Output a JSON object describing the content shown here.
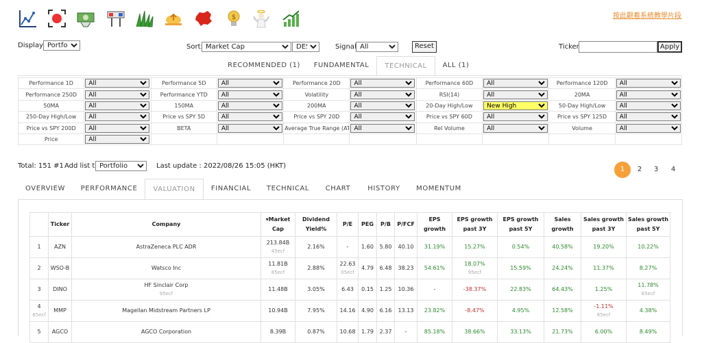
{
  "header": {
    "help_link": "按此觀看系統教學片段",
    "icons": [
      "line-chart-icon",
      "record-icon",
      "money-icon",
      "signboard-icon",
      "grass-icon",
      "rising-sun-icon",
      "china-map-icon",
      "lightbulb-money-icon",
      "angel-icon",
      "growth-chart-icon"
    ]
  },
  "controls": {
    "display_label": "Display:",
    "display_value": "Portfolio",
    "sort_label": "Sort:",
    "sort_value": "Market Cap",
    "order_value": "DESC",
    "signal_label": "Signal:",
    "signal_value": "All",
    "reset_label": "Reset",
    "ticker_label": "Ticker:",
    "ticker_value": "",
    "apply_label": "Apply"
  },
  "screener_tabs": [
    "RECOMMENDED (1)",
    "FUNDAMENTAL",
    "TECHNICAL",
    "ALL (1)"
  ],
  "filters": [
    {
      "label": "Performance 1D",
      "value": "All"
    },
    {
      "label": "Performance 5D",
      "value": "All"
    },
    {
      "label": "Performance 20D",
      "value": "All"
    },
    {
      "label": "Performance 60D",
      "value": "All"
    },
    {
      "label": "Performance 120D",
      "value": "All"
    },
    {
      "label": "Performance 250D",
      "value": "All"
    },
    {
      "label": "Performance YTD",
      "value": "All"
    },
    {
      "label": "Volatility",
      "value": "All"
    },
    {
      "label": "RSI(14)",
      "value": "All"
    },
    {
      "label": "20MA",
      "value": "All"
    },
    {
      "label": "50MA",
      "value": "All"
    },
    {
      "label": "150MA",
      "value": "All"
    },
    {
      "label": "200MA",
      "value": "All"
    },
    {
      "label": "20-Day High/Low",
      "value": "New High",
      "highlight": true
    },
    {
      "label": "50-Day High/Low",
      "value": "All"
    },
    {
      "label": "250-Day High/Low",
      "value": "All"
    },
    {
      "label": "Price vs SPY 5D",
      "value": "All"
    },
    {
      "label": "Price vs SPY 20D",
      "value": "All"
    },
    {
      "label": "Price vs SPY 60D",
      "value": "All"
    },
    {
      "label": "Price vs SPY 125D",
      "value": "All"
    },
    {
      "label": "Price vs SPY 200D",
      "value": "All"
    },
    {
      "label": "BETA",
      "value": "All"
    },
    {
      "label": "Average True Range (ATR)",
      "value": "All"
    },
    {
      "label": "Rel Volume",
      "value": "All"
    },
    {
      "label": "Volume",
      "value": "All"
    },
    {
      "label": "Price",
      "value": "All"
    }
  ],
  "summary": {
    "total": "Total: 151 #1",
    "add_list_label": "Add list to",
    "add_list_value": "Portfolio",
    "last_update": "Last update : 2022/08/26 15:05 (HKT)"
  },
  "pagination": [
    "1",
    "2",
    "3",
    "4"
  ],
  "view_tabs": [
    "OVERVIEW",
    "PERFORMANCE",
    "VALUATION",
    "FINANCIAL",
    "TECHNICAL",
    "CHART",
    "HISTORY",
    "MOMENTUM"
  ],
  "table": {
    "headers": [
      "",
      "Ticker",
      "Company",
      "Market Cap",
      "Dividend Yield%",
      "P/E",
      "PEG",
      "P/B",
      "P/FCF",
      "EPS growth",
      "EPS growth past 3Y",
      "EPS growth past 5Y",
      "Sales growth",
      "Sales growth past 3Y",
      "Sales growth past 5Y"
    ],
    "sort_marker": "▾",
    "rows": [
      {
        "n": "1",
        "n_sub": "",
        "ticker": "AZN",
        "company": "AstraZeneca PLC ADR",
        "company_sub": "",
        "cap": "213.84B",
        "cap_sub": "45ecf",
        "div": "2.16%",
        "pe": "-",
        "pe_sub": "",
        "peg": "1.60",
        "pb": "5.80",
        "pfcf": "40.10",
        "eps": "31.19%",
        "eps3": "15.27%",
        "eps3_sub": "",
        "eps5": "0.54%",
        "sales": "40.58%",
        "sales3": "19.20%",
        "sales3_sub": "",
        "sales5": "10.22%",
        "sales5_sub": ""
      },
      {
        "n": "2",
        "n_sub": "",
        "ticker": "WSO-B",
        "company": "Watsco Inc",
        "company_sub": "",
        "cap": "11.81B",
        "cap_sub": "85ecf",
        "div": "2.88%",
        "pe": "22.63",
        "pe_sub": "05ecf",
        "peg": "4.79",
        "pb": "6.48",
        "pfcf": "38.23",
        "eps": "54.61%",
        "eps3": "18.07%",
        "eps3_sub": "95ecf",
        "eps5": "15.59%",
        "sales": "24.24%",
        "sales3": "11.37%",
        "sales3_sub": "",
        "sales5": "8.27%",
        "sales5_sub": ""
      },
      {
        "n": "3",
        "n_sub": "",
        "ticker": "DINO",
        "company": "HF Sinclair Corp",
        "company_sub": "95ecf",
        "cap": "11.48B",
        "cap_sub": "",
        "div": "3.05%",
        "pe": "6.43",
        "pe_sub": "",
        "peg": "0.15",
        "pb": "1.25",
        "pfcf": "10.36",
        "eps": "-",
        "eps3": "-38.37%",
        "eps3_sub": "",
        "eps5": "22.83%",
        "sales": "64.43%",
        "sales3": "1.25%",
        "sales3_sub": "",
        "sales5": "11.78%",
        "sales5_sub": "65ecf"
      },
      {
        "n": "4",
        "n_sub": "65ecf",
        "ticker": "MMP",
        "company": "Magellan Midstream Partners LP",
        "company_sub": "",
        "cap": "10.94B",
        "cap_sub": "",
        "div": "7.95%",
        "pe": "14.16",
        "pe_sub": "",
        "peg": "4.90",
        "pb": "6.16",
        "pfcf": "13.13",
        "eps": "23.82%",
        "eps3": "-8.47%",
        "eps3_sub": "",
        "eps5": "4.95%",
        "sales": "12.58%",
        "sales3": "-1.11%",
        "sales3_sub": "65ecf",
        "sales5": "4.38%",
        "sales5_sub": ""
      },
      {
        "n": "5",
        "n_sub": "",
        "ticker": "AGCO",
        "company": "AGCO Corporation",
        "company_sub": "",
        "cap": "8.39B",
        "cap_sub": "",
        "div": "0.87%",
        "pe": "10.68",
        "pe_sub": "",
        "peg": "1.79",
        "pb": "2.37",
        "pfcf": "-",
        "eps": "85.18%",
        "eps3": "38.66%",
        "eps3_sub": "",
        "eps5": "33.13%",
        "sales": "21.73%",
        "sales3": "6.00%",
        "sales3_sub": "",
        "sales5": "8.49%",
        "sales5_sub": ""
      }
    ]
  }
}
